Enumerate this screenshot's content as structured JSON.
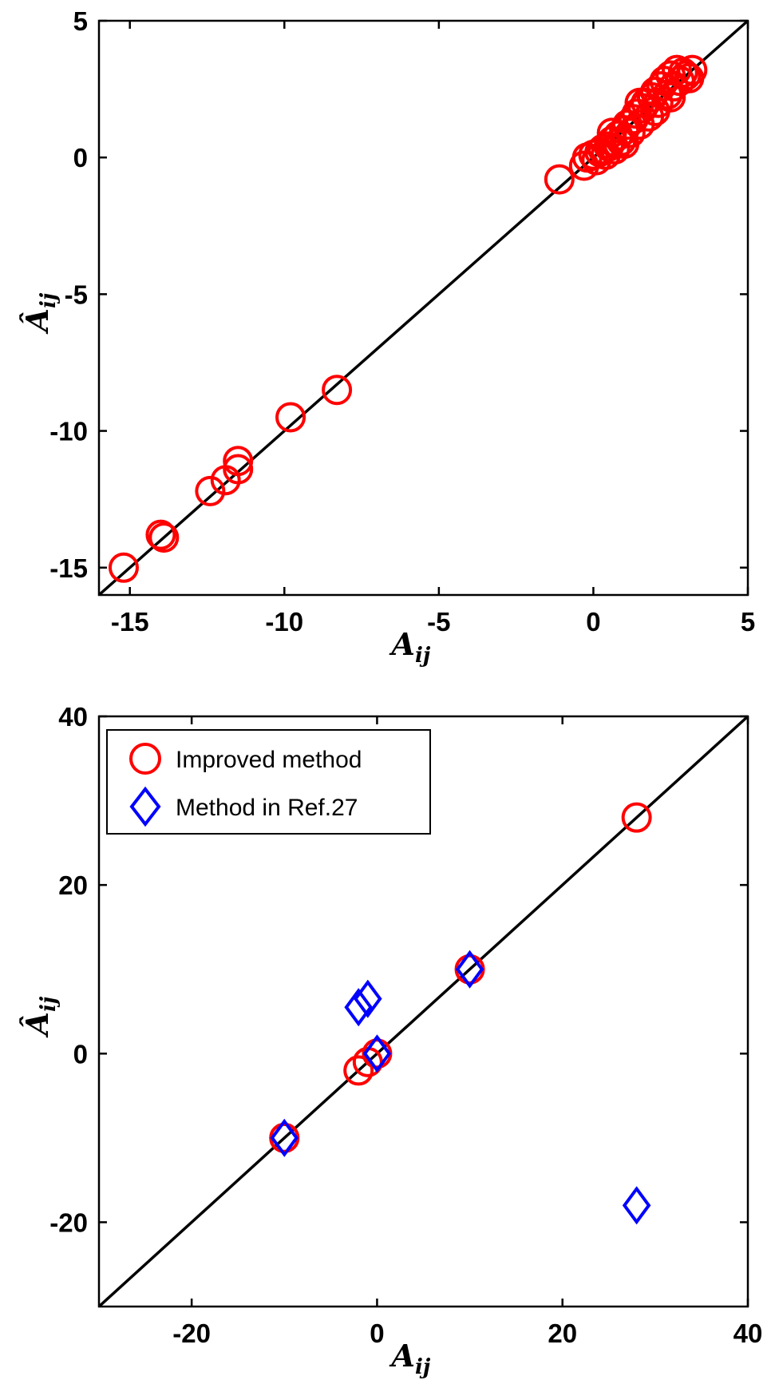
{
  "chart_data": [
    {
      "type": "scatter",
      "xlabel_main": "A",
      "xlabel_sub": "ij",
      "ylabel_main": "Â",
      "ylabel_sub": "ij",
      "xlim": [
        -16,
        5
      ],
      "ylim": [
        -16,
        5
      ],
      "xticks": [
        -15,
        -10,
        -5,
        0,
        5
      ],
      "yticks": [
        -15,
        -10,
        -5,
        0,
        5
      ],
      "xtick_labels": [
        "-15",
        "-10",
        "-5",
        "0",
        "5"
      ],
      "ytick_labels": [
        "-15",
        "-10",
        "-5",
        "0",
        "5"
      ],
      "reference_line": "y=x",
      "colors": {
        "circle": "#ff0000",
        "line": "#000000"
      },
      "series": [
        {
          "marker": "circle",
          "points": [
            [
              -15.2,
              -15.0
            ],
            [
              -14.0,
              -13.8
            ],
            [
              -13.9,
              -13.9
            ],
            [
              -12.4,
              -12.2
            ],
            [
              -11.9,
              -11.8
            ],
            [
              -11.5,
              -11.1
            ],
            [
              -11.5,
              -11.4
            ],
            [
              -9.8,
              -9.5
            ],
            [
              -8.3,
              -8.5
            ],
            [
              -1.1,
              -0.8
            ],
            [
              -0.3,
              -0.3
            ],
            [
              -0.2,
              0.0
            ],
            [
              0.0,
              0.1
            ],
            [
              0.1,
              -0.1
            ],
            [
              0.2,
              0.2
            ],
            [
              0.3,
              0.3
            ],
            [
              0.4,
              0.1
            ],
            [
              0.5,
              0.4
            ],
            [
              0.6,
              0.6
            ],
            [
              0.7,
              0.3
            ],
            [
              0.8,
              0.8
            ],
            [
              0.9,
              0.6
            ],
            [
              1.0,
              1.0
            ],
            [
              1.1,
              1.2
            ],
            [
              1.2,
              0.9
            ],
            [
              1.3,
              1.4
            ],
            [
              1.4,
              1.6
            ],
            [
              1.5,
              1.2
            ],
            [
              1.6,
              1.8
            ],
            [
              1.7,
              2.0
            ],
            [
              1.8,
              1.5
            ],
            [
              1.9,
              2.2
            ],
            [
              2.0,
              2.4
            ],
            [
              2.1,
              2.0
            ],
            [
              2.2,
              2.6
            ],
            [
              2.3,
              2.8
            ],
            [
              2.4,
              2.3
            ],
            [
              2.5,
              3.0
            ],
            [
              2.6,
              2.6
            ],
            [
              2.7,
              3.2
            ],
            [
              2.8,
              2.8
            ],
            [
              2.9,
              3.1
            ],
            [
              3.0,
              3.0
            ],
            [
              3.1,
              2.9
            ],
            [
              3.2,
              3.2
            ],
            [
              1.5,
              2.0
            ],
            [
              2.0,
              1.7
            ],
            [
              2.5,
              2.2
            ],
            [
              0.6,
              0.9
            ],
            [
              1.0,
              0.5
            ]
          ]
        }
      ]
    },
    {
      "type": "scatter",
      "xlabel_main": "A",
      "xlabel_sub": "ij",
      "ylabel_main": "Â",
      "ylabel_sub": "ij",
      "xlim": [
        -30,
        40
      ],
      "ylim": [
        -30,
        40
      ],
      "xticks": [
        -20,
        0,
        20,
        40
      ],
      "yticks": [
        -20,
        0,
        20,
        40
      ],
      "xtick_labels": [
        "-20",
        "0",
        "20",
        "40"
      ],
      "ytick_labels": [
        "-20",
        "0",
        "20",
        "40"
      ],
      "reference_line": "y=x",
      "legend_position": "top-left",
      "colors": {
        "circle": "#ff0000",
        "diamond": "#0000ff",
        "line": "#000000"
      },
      "series": [
        {
          "name": "Improved method",
          "marker": "circle",
          "points": [
            [
              -10,
              -10
            ],
            [
              -10,
              -10
            ],
            [
              -2,
              -2
            ],
            [
              -1,
              -1
            ],
            [
              0,
              0
            ],
            [
              10,
              10
            ],
            [
              28,
              28
            ]
          ]
        },
        {
          "name": "Method in Ref.27",
          "marker": "diamond",
          "points": [
            [
              -10,
              -10
            ],
            [
              -2,
              5.5
            ],
            [
              -1,
              6.5
            ],
            [
              0,
              0
            ],
            [
              10,
              10
            ],
            [
              28,
              -18
            ]
          ]
        }
      ]
    }
  ]
}
